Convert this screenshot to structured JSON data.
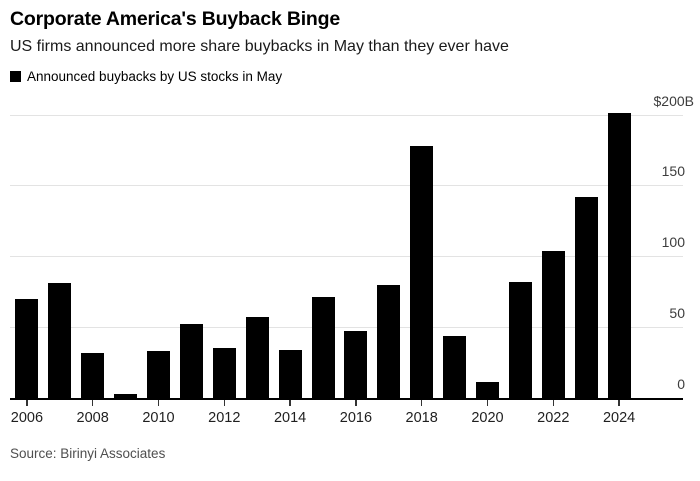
{
  "header": {
    "title": "Corporate America's Buyback Binge",
    "subtitle": "US firms announced more share buybacks in May than they ever have"
  },
  "legend": {
    "label": "Announced buybacks by US stocks in May",
    "swatch_color": "#000000"
  },
  "chart_data": {
    "type": "bar",
    "title": "Announced buybacks by US stocks in May",
    "categories": [
      "2006",
      "2007",
      "2008",
      "2009",
      "2010",
      "2011",
      "2012",
      "2013",
      "2014",
      "2015",
      "2016",
      "2017",
      "2018",
      "2019",
      "2020",
      "2021",
      "2022",
      "2023",
      "2024"
    ],
    "values": [
      70,
      81,
      32,
      3,
      33,
      52,
      35,
      57,
      34,
      71,
      47,
      80,
      178,
      44,
      11,
      82,
      104,
      142,
      201
    ],
    "unit_hint": "$B",
    "ylim": [
      0,
      205
    ],
    "y_ticks": [
      {
        "value": 200,
        "label": "$200B"
      },
      {
        "value": 150,
        "label": "150"
      },
      {
        "value": 100,
        "label": "100"
      },
      {
        "value": 50,
        "label": "50"
      },
      {
        "value": 0,
        "label": "0"
      }
    ],
    "x_tick_labels": [
      "2006",
      "2008",
      "2010",
      "2012",
      "2014",
      "2016",
      "2018",
      "2020",
      "2022",
      "2024"
    ],
    "bar_color": "#000000",
    "grid": "horizontal",
    "gridline_color": "#e3e3e3",
    "axis_side": "right",
    "legend_position": "top-left"
  },
  "source": {
    "text": "Source: Birinyi Associates"
  }
}
